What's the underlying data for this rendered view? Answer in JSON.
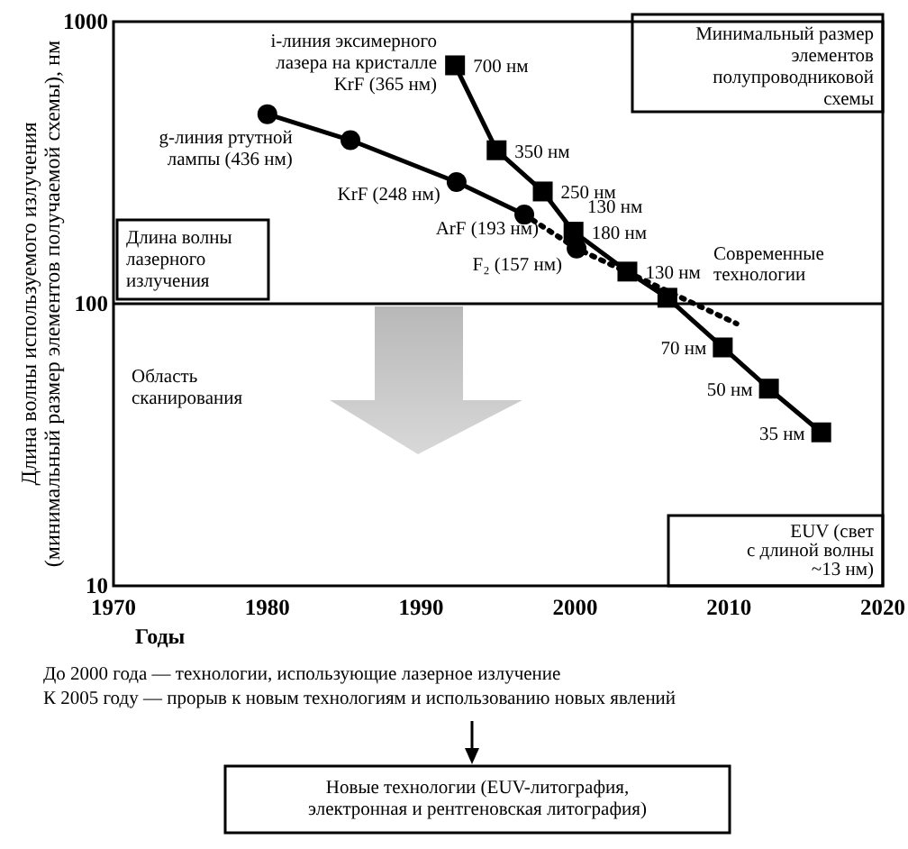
{
  "chart_data": {
    "type": "line",
    "xlabel": "Годы",
    "ylabel": "Длина волны используемого излучения\n(минимальный размер элементов получаемой схемы), нм",
    "log": "y",
    "xlim": [
      1970,
      2020
    ],
    "xticks": [
      1970,
      1980,
      1990,
      2000,
      2010,
      2020
    ],
    "ylim": [
      10,
      1000
    ],
    "yticks": [
      10,
      100,
      1000
    ],
    "series": [
      {
        "color": "#000000",
        "marker": "circle",
        "line_style": "solid",
        "x": [
          1980,
          1985.4,
          1992.3,
          1996.7
        ],
        "values": [
          470,
          380,
          270,
          207
        ]
      },
      {
        "color": "#000000",
        "marker": "none",
        "line_style": "dotted",
        "x": [
          1996.7,
          2000.1,
          2010.5
        ],
        "values": [
          207,
          157,
          85
        ]
      },
      {
        "type": "scatter",
        "color": "#000000",
        "marker": "circle",
        "x": [
          2000.1
        ],
        "values": [
          157
        ]
      },
      {
        "color": "#000000",
        "marker": "square",
        "line_style": "solid",
        "x": [
          1992.2,
          1994.9,
          1997.9,
          1999.9,
          2003.4,
          2006,
          2009.6,
          2012.6,
          2016
        ],
        "values": [
          700,
          350,
          250,
          180,
          130,
          105,
          70,
          50,
          35
        ],
        "value_labels": [
          "700 нм",
          "350 нм",
          "250 нм",
          "180 нм",
          "130 нм",
          null,
          "70 нм",
          "50 нм",
          "35 нм"
        ]
      }
    ],
    "ref_lines": [
      {
        "axis": "y",
        "value": 100,
        "label": null
      }
    ],
    "annotations": [
      {
        "text": "i-линия эксимерного\nлазера на кристалле\nKrF (365 нм)",
        "x": 1985.4,
        "y": 380
      },
      {
        "text": "g-линия ртутной\nлампы (436 нм)",
        "x": 1980,
        "y": 470
      },
      {
        "text": "KrF (248 нм)",
        "x": 1992.3,
        "y": 270
      },
      {
        "text": "ArF (193 нм)",
        "x": 1996.7,
        "y": 207
      },
      {
        "text": "F₂ (157 нм)",
        "x": 2000.1,
        "y": 157
      },
      "130 нм",
      "Минимальный размер\nэлементов\nполупроводниковой\nсхемы",
      "Длина волны\nлазерного\nизлучения",
      "Область\nсканирования",
      "Современные\nтехнологии",
      "EUV (свет\nс длиной волны\n~13 нм)",
      "До 2000 года — технологии, использующие лазерное излучение\nК 2005 году — прорыв к новым технологиям и использованию новых явлений",
      "Новые технологии (EUV-литография,\nэлектронная и рентгеновская литография)"
    ]
  }
}
